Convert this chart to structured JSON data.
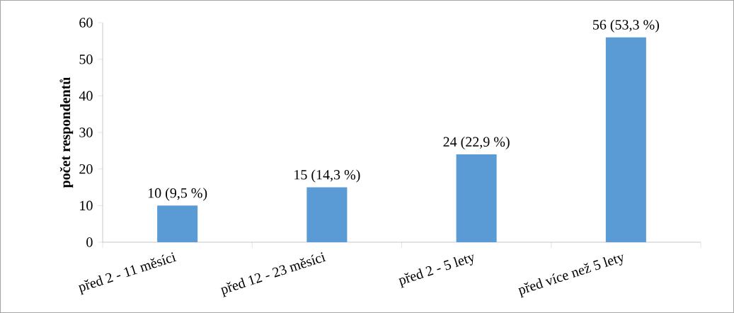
{
  "chart_data": {
    "type": "bar",
    "ylabel": "počet respondentů",
    "categories": [
      "před 2 - 11 měsíci",
      "před 12 - 23 měsíci",
      "před 2 - 5 lety",
      "před více než 5 lety"
    ],
    "values": [
      10,
      15,
      24,
      56
    ],
    "value_labels": [
      "10 (9,5 %)",
      "15 (14,3 %)",
      "24 (22,9 %)",
      "56 (53,3 %)"
    ],
    "color": "#5b9bd5",
    "ylim": [
      0,
      60
    ],
    "yticks": [
      0,
      10,
      20,
      30,
      40,
      50,
      60
    ],
    "grid": false
  }
}
